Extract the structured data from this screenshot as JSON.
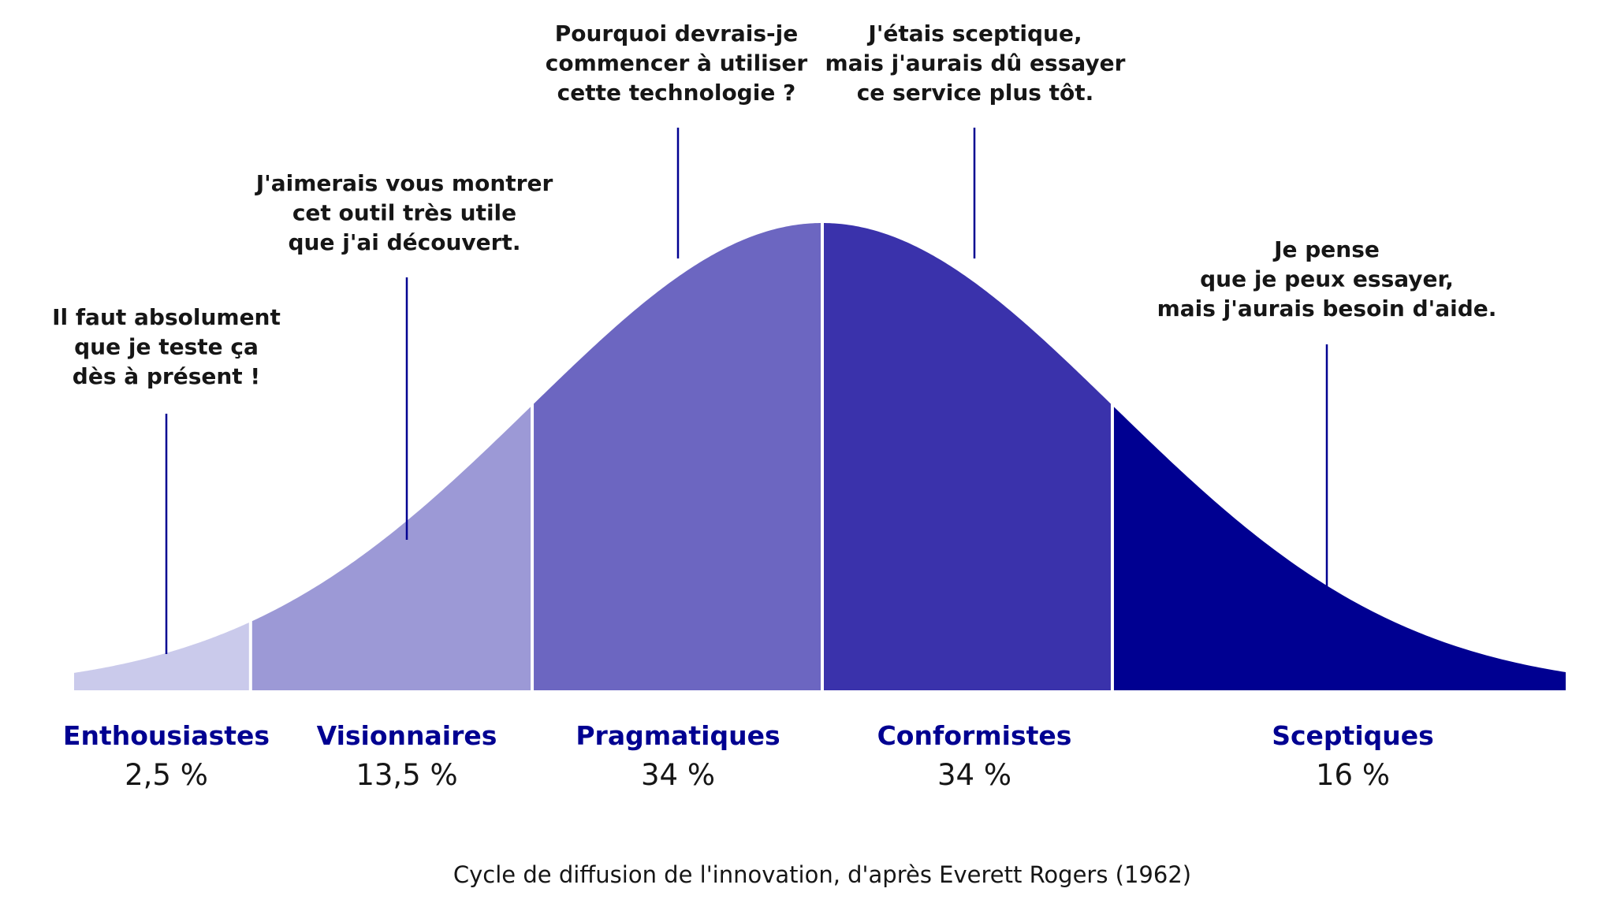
{
  "chart_data": {
    "type": "area",
    "title": "",
    "caption": "Cycle de diffusion de l'innovation, d'après Everett Rogers (1962)",
    "distribution": "normal",
    "categories": [
      {
        "name": "Enthousiastes",
        "percent_label": "2,5 %",
        "value": 2.5,
        "color": "#cacaeb",
        "quote": [
          "Il faut absolument",
          "que je teste ça",
          "dès à présent !"
        ]
      },
      {
        "name": "Visionnaires",
        "percent_label": "13,5 %",
        "value": 13.5,
        "color": "#9c99d6",
        "quote": [
          "J'aimerais vous montrer",
          "cet outil très utile",
          "que j'ai découvert."
        ]
      },
      {
        "name": "Pragmatiques",
        "percent_label": "34 %",
        "value": 34,
        "color": "#6c66c1",
        "quote": [
          "Pourquoi devrais-je",
          "commencer à utiliser",
          "cette technologie ?"
        ]
      },
      {
        "name": "Conformistes",
        "percent_label": "34 %",
        "value": 34,
        "color": "#3a32ab",
        "quote": [
          "J'étais sceptique,",
          "mais j'aurais dû essayer",
          "ce service plus tôt."
        ]
      },
      {
        "name": "Sceptiques",
        "percent_label": "16 %",
        "value": 16,
        "color": "#000091",
        "quote": [
          "Je pense",
          "que je peux essayer,",
          "mais j'aurais besoin d'aide."
        ]
      }
    ],
    "leader_line_color": "#000091",
    "label_color": "#000091"
  }
}
